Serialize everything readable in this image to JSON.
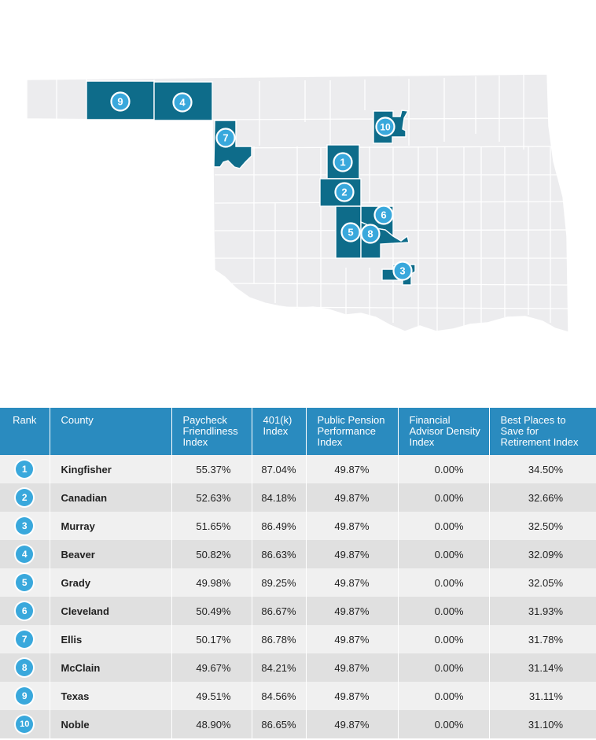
{
  "chart_data": {
    "type": "table",
    "columns": [
      "Rank",
      "County",
      "Paycheck Friendliness Index",
      "401(k) Index",
      "Public Pension Performance Index",
      "Financial Advisor Density Index",
      "Best Places to Save for Retirement Index"
    ],
    "rows": [
      {
        "rank": "1",
        "county": "Kingfisher",
        "paycheck": "55.37%",
        "k401": "87.04%",
        "pension": "49.87%",
        "advisor": "0.00%",
        "best": "34.50%"
      },
      {
        "rank": "2",
        "county": "Canadian",
        "paycheck": "52.63%",
        "k401": "84.18%",
        "pension": "49.87%",
        "advisor": "0.00%",
        "best": "32.66%"
      },
      {
        "rank": "3",
        "county": "Murray",
        "paycheck": "51.65%",
        "k401": "86.49%",
        "pension": "49.87%",
        "advisor": "0.00%",
        "best": "32.50%"
      },
      {
        "rank": "4",
        "county": "Beaver",
        "paycheck": "50.82%",
        "k401": "86.63%",
        "pension": "49.87%",
        "advisor": "0.00%",
        "best": "32.09%"
      },
      {
        "rank": "5",
        "county": "Grady",
        "paycheck": "49.98%",
        "k401": "89.25%",
        "pension": "49.87%",
        "advisor": "0.00%",
        "best": "32.05%"
      },
      {
        "rank": "6",
        "county": "Cleveland",
        "paycheck": "50.49%",
        "k401": "86.67%",
        "pension": "49.87%",
        "advisor": "0.00%",
        "best": "31.93%"
      },
      {
        "rank": "7",
        "county": "Ellis",
        "paycheck": "50.17%",
        "k401": "86.78%",
        "pension": "49.87%",
        "advisor": "0.00%",
        "best": "31.78%"
      },
      {
        "rank": "8",
        "county": "McClain",
        "paycheck": "49.67%",
        "k401": "84.21%",
        "pension": "49.87%",
        "advisor": "0.00%",
        "best": "31.14%"
      },
      {
        "rank": "9",
        "county": "Texas",
        "paycheck": "49.51%",
        "k401": "84.56%",
        "pension": "49.87%",
        "advisor": "0.00%",
        "best": "31.11%"
      },
      {
        "rank": "10",
        "county": "Noble",
        "paycheck": "48.90%",
        "k401": "86.65%",
        "pension": "49.87%",
        "advisor": "0.00%",
        "best": "31.10%"
      }
    ]
  },
  "map": {
    "highlight_color": "#0e6c8a",
    "base_color": "#ececee",
    "badge_color": "#39a8dc",
    "highlighted_ranks": [
      "1",
      "2",
      "3",
      "4",
      "5",
      "6",
      "7",
      "8",
      "9",
      "10"
    ]
  }
}
